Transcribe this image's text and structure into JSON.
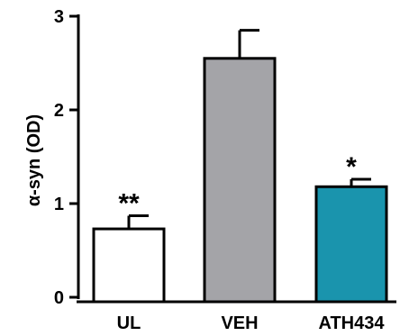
{
  "chart_data": {
    "type": "bar",
    "title": "",
    "xlabel": "",
    "ylabel": "α-syn (OD)",
    "ylim": [
      0,
      3
    ],
    "yticks": [
      0,
      1,
      2,
      3
    ],
    "categories": [
      "UL",
      "VEH",
      "ATH434"
    ],
    "values": [
      0.73,
      2.55,
      1.18
    ],
    "errors": [
      0.14,
      0.3,
      0.08
    ],
    "significance": [
      "**",
      "",
      "*"
    ],
    "colors": [
      "#ffffff",
      "#a4a4a8",
      "#1a94ad"
    ],
    "grid": false,
    "legend": "none"
  }
}
